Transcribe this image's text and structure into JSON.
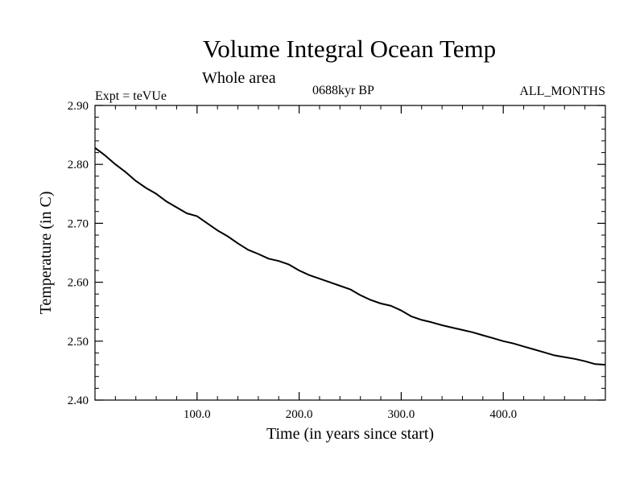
{
  "chart_data": {
    "type": "line",
    "title": "Volume Integral Ocean Temp",
    "subtitle": "Whole area",
    "annotations": {
      "left": "Expt = teVUe",
      "center": "0688kyr BP",
      "right": "ALL_MONTHS"
    },
    "xlabel": "Time (in years since start)",
    "ylabel": "Temperature (in C)",
    "xlim": [
      0,
      500
    ],
    "ylim": [
      2.4,
      2.9
    ],
    "x_ticks": [
      100,
      200,
      300,
      400
    ],
    "x_tick_labels": [
      "100.0",
      "200.0",
      "300.0",
      "400.0"
    ],
    "y_ticks": [
      2.4,
      2.5,
      2.6,
      2.7,
      2.8,
      2.9
    ],
    "y_tick_labels": [
      "2.40",
      "2.50",
      "2.60",
      "2.70",
      "2.80",
      "2.90"
    ],
    "grid": false,
    "series": [
      {
        "color": "#000000",
        "x": [
          0,
          10,
          20,
          30,
          40,
          50,
          60,
          70,
          80,
          90,
          100,
          110,
          120,
          130,
          140,
          150,
          160,
          170,
          180,
          190,
          200,
          210,
          220,
          230,
          240,
          250,
          260,
          270,
          280,
          290,
          300,
          310,
          320,
          330,
          340,
          350,
          360,
          370,
          380,
          390,
          400,
          410,
          420,
          430,
          440,
          450,
          460,
          470,
          480,
          490,
          500
        ],
        "y": [
          2.828,
          2.815,
          2.8,
          2.787,
          2.772,
          2.76,
          2.75,
          2.737,
          2.727,
          2.717,
          2.712,
          2.7,
          2.688,
          2.678,
          2.666,
          2.655,
          2.648,
          2.64,
          2.636,
          2.63,
          2.62,
          2.612,
          2.606,
          2.6,
          2.594,
          2.588,
          2.578,
          2.57,
          2.564,
          2.56,
          2.552,
          2.542,
          2.536,
          2.532,
          2.527,
          2.523,
          2.519,
          2.515,
          2.51,
          2.505,
          2.5,
          2.496,
          2.491,
          2.486,
          2.481,
          2.476,
          2.473,
          2.47,
          2.466,
          2.461,
          2.46
        ]
      }
    ]
  }
}
